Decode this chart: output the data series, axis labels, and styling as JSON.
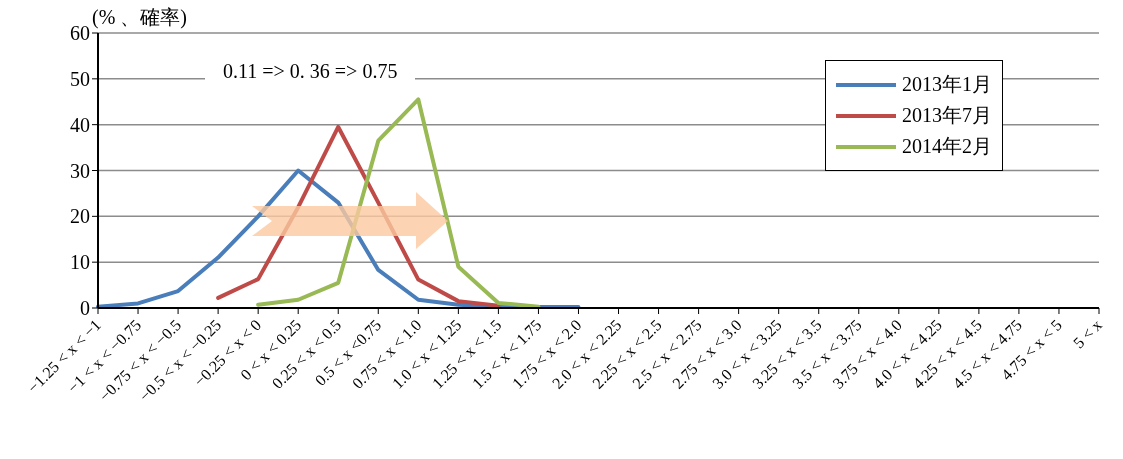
{
  "chart_data": {
    "type": "line",
    "ylabel": "(% 、確率)",
    "annotations": [
      "0.11 => 0. 36 => 0.75"
    ],
    "categories": [
      "−1.25 < x < −1",
      "−1 < x < −0.75",
      "−0.75 < x < −0.5",
      "−0.5 < x < −0.25",
      "−0.25 < x < 0",
      "0 < x < 0.25",
      "0.25 < x < 0.5",
      "0.5 < x <0.75",
      "0.75 < x < 1.0",
      "1.0 < x < 1.25",
      "1.25 < x < 1.5",
      "1.5 < x < 1.75",
      "1.75 < x < 2.0",
      "2.0 < x < 2.25",
      "2.25 < x < 2.5",
      "2.5 < x < 2.75",
      "2.75 < x < 3.0",
      "3.0 < x < 3.25",
      "3.25 < x < 3.5",
      "3.5 < x < 3.75",
      "3.75 < x < 4.0",
      "4.0 < x < 4.25",
      "4.25 < x < 4.5",
      "4.5 < x < 4.75",
      "4.75 < x < 5",
      "5 < x"
    ],
    "series": [
      {
        "name": "2013年1月",
        "color": "#4a7ebb",
        "values": [
          0.3,
          1,
          3.7,
          11,
          20,
          30,
          23,
          8.3,
          1.8,
          0.7,
          0.3,
          0.2,
          0.2,
          null,
          null,
          null,
          null,
          null,
          null,
          null,
          null,
          null,
          null,
          null,
          null,
          null
        ]
      },
      {
        "name": "2013年7月",
        "color": "#be4b48",
        "values": [
          null,
          null,
          null,
          2.2,
          6.3,
          22,
          39.5,
          23,
          6.2,
          1.5,
          0.5,
          null,
          null,
          null,
          null,
          null,
          null,
          null,
          null,
          null,
          null,
          null,
          null,
          null,
          null,
          null
        ]
      },
      {
        "name": "2014年2月",
        "color": "#98b954",
        "values": [
          null,
          null,
          null,
          null,
          0.7,
          1.8,
          5.5,
          36.5,
          45.5,
          9,
          1.1,
          0.3,
          null,
          null,
          null,
          null,
          null,
          null,
          null,
          null,
          null,
          null,
          null,
          null,
          null,
          null
        ]
      }
    ],
    "ylim": [
      0,
      60
    ],
    "yticks": [
      0,
      10,
      20,
      30,
      40,
      50,
      60
    ],
    "grid": "y",
    "legend": "top right",
    "marker": "none",
    "line_style": "solid"
  }
}
